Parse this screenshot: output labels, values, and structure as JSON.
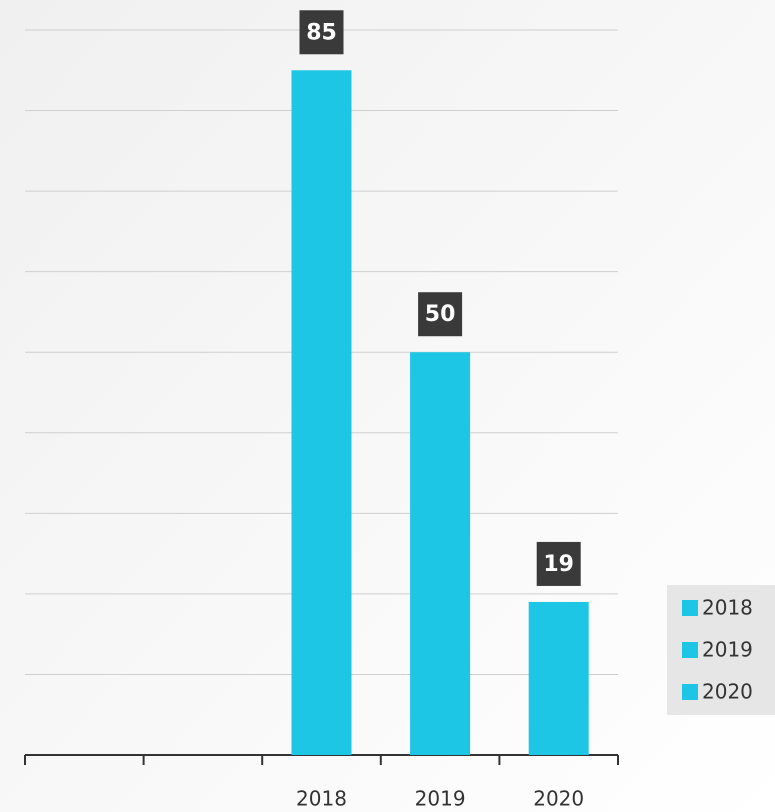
{
  "chart_data": {
    "type": "bar",
    "categories": [
      null,
      null,
      "2018",
      "2019",
      "2020"
    ],
    "values": [
      null,
      null,
      85,
      50,
      19
    ],
    "color": "#1ec6e6",
    "ylim": [
      0,
      90
    ],
    "yticks": [
      0,
      10,
      20,
      30,
      40,
      50,
      60,
      70,
      80,
      90
    ],
    "grid": true,
    "legend": "right"
  }
}
